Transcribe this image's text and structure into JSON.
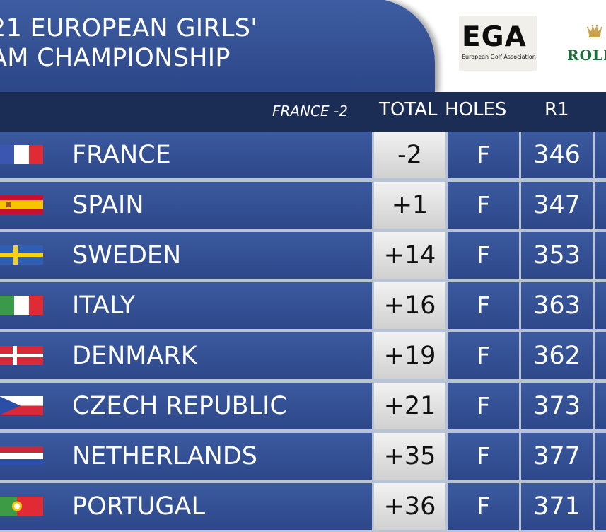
{
  "header": {
    "title_line1": "21 EUROPEAN GIRLS'",
    "title_line2": "AM CHAMPIONSHIP",
    "ega_logo": {
      "abbr": "EGA",
      "full": "European Golf Association"
    },
    "rolex_logo": {
      "text": "ROLE"
    }
  },
  "columns": {
    "reference": "FRANCE -2",
    "total": "TOTAL",
    "holes": "HOLES",
    "r1": "R1"
  },
  "rows": [
    {
      "country": "FRANCE",
      "flag": "france-flag",
      "total": "-2",
      "holes": "F",
      "r1": "346"
    },
    {
      "country": "SPAIN",
      "flag": "spain-flag",
      "total": "+1",
      "holes": "F",
      "r1": "347"
    },
    {
      "country": "SWEDEN",
      "flag": "sweden-flag",
      "total": "+14",
      "holes": "F",
      "r1": "353"
    },
    {
      "country": "ITALY",
      "flag": "italy-flag",
      "total": "+16",
      "holes": "F",
      "r1": "363"
    },
    {
      "country": "DENMARK",
      "flag": "denmark-flag",
      "total": "+19",
      "holes": "F",
      "r1": "362"
    },
    {
      "country": "CZECH REPUBLIC",
      "flag": "czech-flag",
      "total": "+21",
      "holes": "F",
      "r1": "373"
    },
    {
      "country": "NETHERLANDS",
      "flag": "netherlands-flag",
      "total": "+35",
      "holes": "F",
      "r1": "377"
    },
    {
      "country": "PORTUGAL",
      "flag": "portugal-flag",
      "total": "+36",
      "holes": "F",
      "r1": "371"
    }
  ],
  "colors": {
    "banner_blue": "#34509a",
    "header_bar": "#1b2c55",
    "row_blue": "#34509a",
    "total_cell": "#e2e2e2",
    "rolex_green": "#1d6e3a"
  }
}
